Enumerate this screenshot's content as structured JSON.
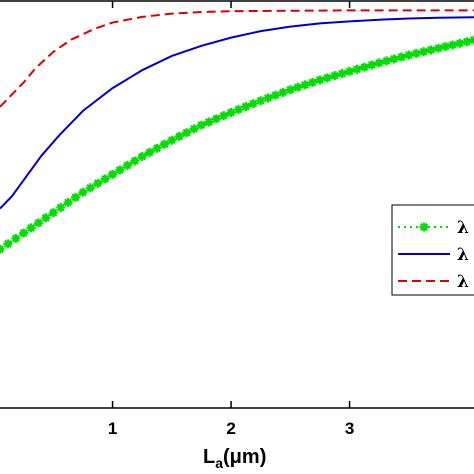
{
  "chart_data": {
    "type": "line",
    "xlabel": "L",
    "xlabel_sub": "a",
    "xlabel_unit": "(μm)",
    "xlim": [
      0.05,
      4.05
    ],
    "ylim": [
      0,
      1
    ],
    "x_ticks": [
      {
        "value": 1,
        "label": "1"
      },
      {
        "value": 2,
        "label": "2"
      },
      {
        "value": 3,
        "label": "3"
      }
    ],
    "grid": false,
    "legend_position": "right",
    "series": [
      {
        "name": "λ",
        "color": "#00dd00",
        "style": "dotted-star",
        "x": [
          0.05,
          0.25,
          0.5,
          0.75,
          1.0,
          1.25,
          1.5,
          1.75,
          2.0,
          2.25,
          2.5,
          2.75,
          3.0,
          3.25,
          3.5,
          3.75,
          4.05
        ],
        "y": [
          0.39,
          0.43,
          0.48,
          0.53,
          0.574,
          0.618,
          0.658,
          0.695,
          0.726,
          0.755,
          0.782,
          0.806,
          0.827,
          0.848,
          0.867,
          0.884,
          0.904
        ]
      },
      {
        "name": "λ",
        "color": "#0000cc",
        "style": "solid",
        "x": [
          0.05,
          0.15,
          0.25,
          0.4,
          0.55,
          0.75,
          1.0,
          1.25,
          1.5,
          1.75,
          2.0,
          2.25,
          2.5,
          2.75,
          3.0,
          3.25,
          3.5,
          3.75,
          4.05
        ],
        "y": [
          0.49,
          0.52,
          0.56,
          0.62,
          0.67,
          0.73,
          0.786,
          0.83,
          0.865,
          0.89,
          0.91,
          0.926,
          0.937,
          0.945,
          0.95,
          0.954,
          0.957,
          0.959,
          0.96
        ]
      },
      {
        "name": "λ",
        "color": "#dd0000",
        "style": "dashed",
        "x": [
          0.05,
          0.15,
          0.25,
          0.35,
          0.5,
          0.65,
          0.85,
          1.0,
          1.25,
          1.5,
          1.75,
          2.0,
          2.5,
          3.0,
          3.5,
          4.05
        ],
        "y": [
          0.74,
          0.77,
          0.8,
          0.835,
          0.875,
          0.905,
          0.932,
          0.947,
          0.961,
          0.969,
          0.973,
          0.975,
          0.976,
          0.977,
          0.977,
          0.977
        ]
      }
    ]
  }
}
